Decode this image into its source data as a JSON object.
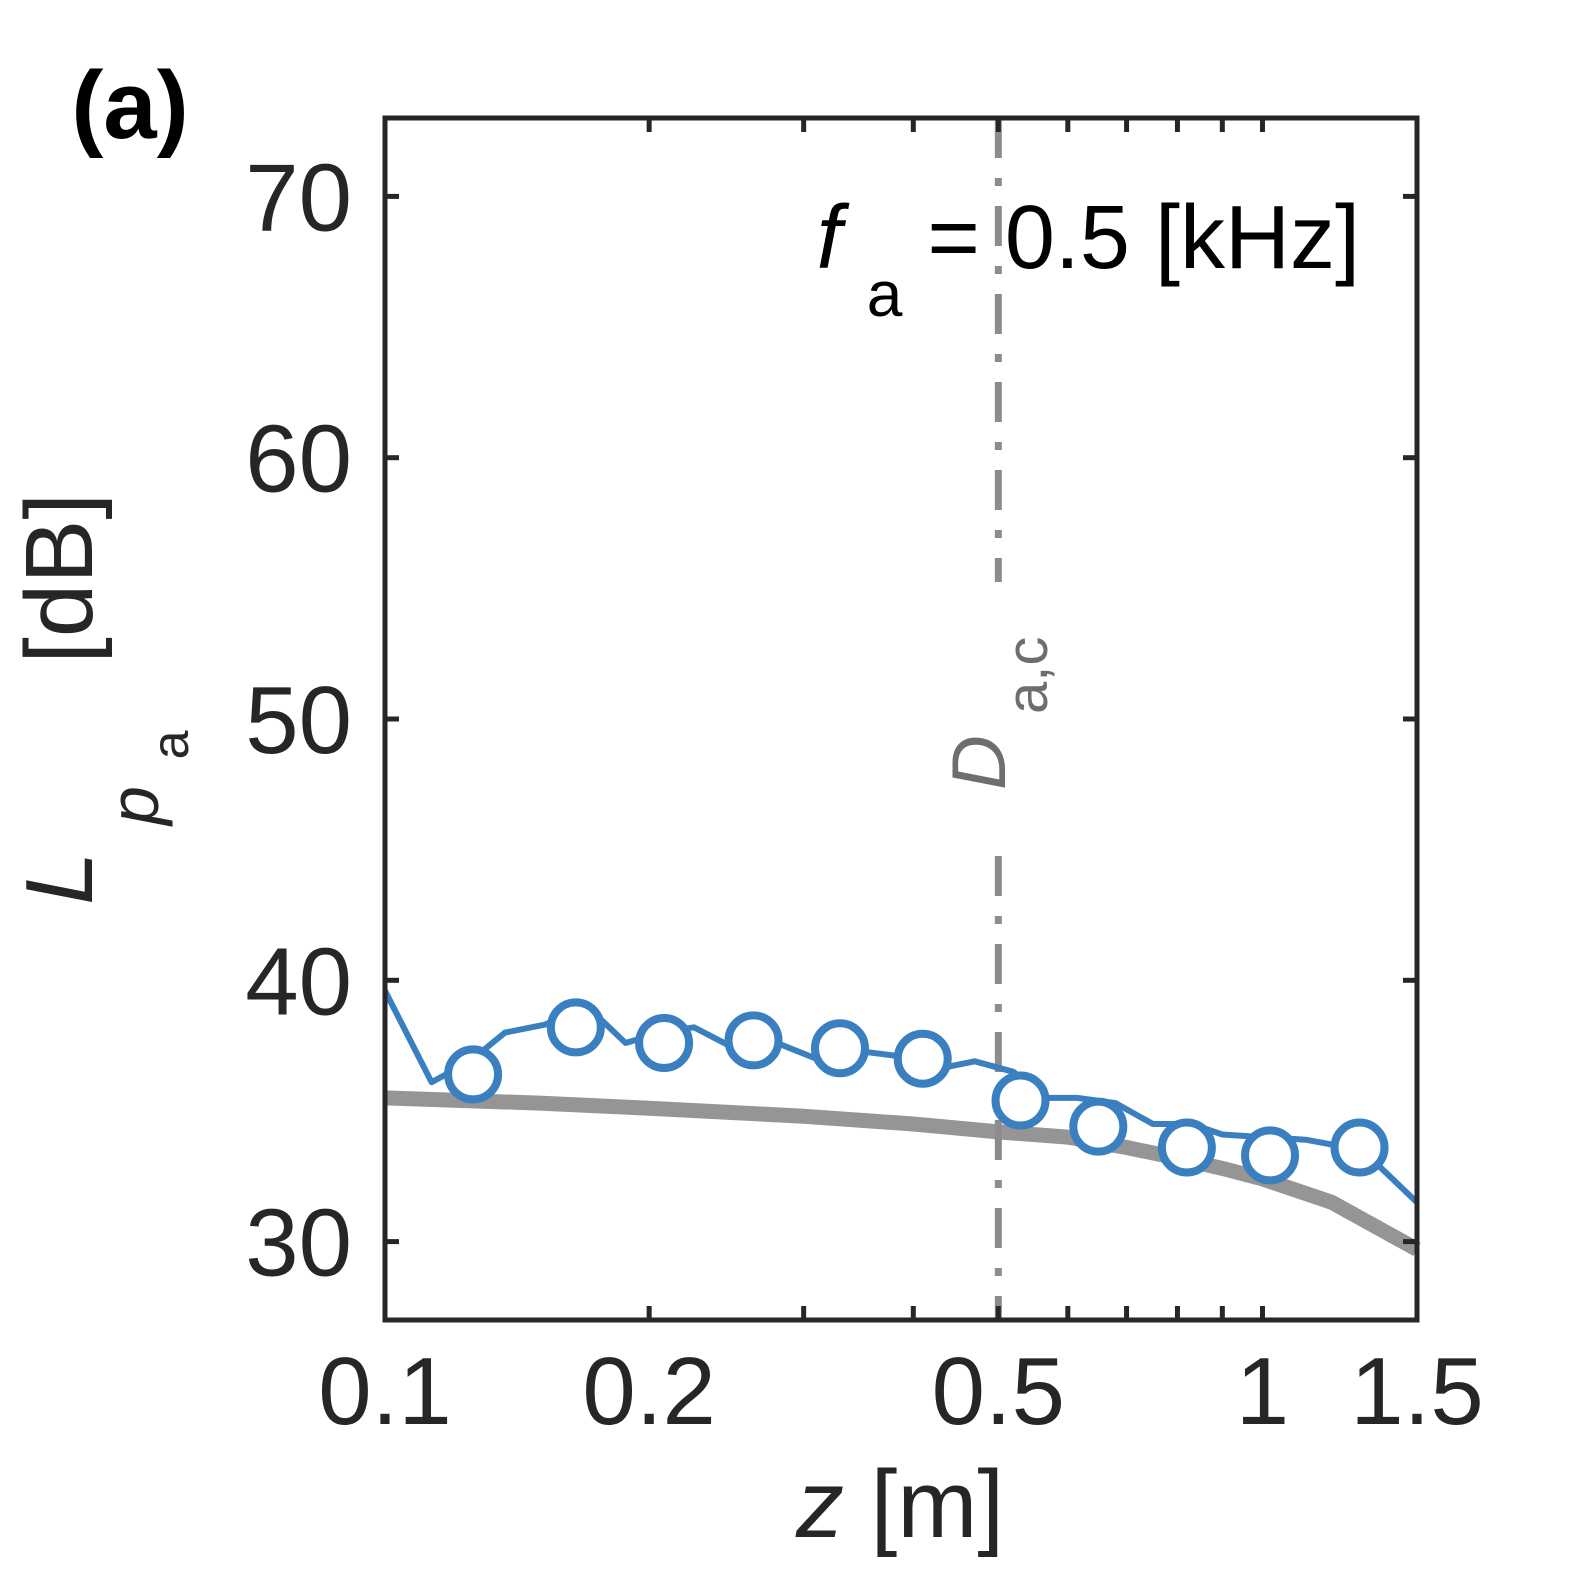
{
  "panel_label": "(a)",
  "annotation": {
    "symbol": "f",
    "subscript": "a",
    "rest": " = 0.5 [kHz]"
  },
  "vline_label": {
    "symbol": "D",
    "subscript": "a,c"
  },
  "colors": {
    "series": "#3a7fbf",
    "model": "#959595",
    "vline": "#8c8c8c",
    "axis": "#262626"
  },
  "chart_data": {
    "type": "line",
    "xscale": "log",
    "xlim": [
      0.1,
      1.5
    ],
    "ylim": [
      27,
      73
    ],
    "xticks": [
      0.1,
      0.2,
      0.5,
      1,
      1.5
    ],
    "xtick_labels": [
      "0.1",
      "0.2",
      "0.5",
      "1",
      "1.5"
    ],
    "xminor_ticks": [
      0.3,
      0.4,
      0.6,
      0.7,
      0.8,
      0.9
    ],
    "yticks": [
      30,
      40,
      50,
      60,
      70
    ],
    "ytick_labels": [
      "30",
      "40",
      "50",
      "60",
      "70"
    ],
    "xlabel": {
      "symbol": "z",
      "rest": " [m]"
    },
    "ylabel": {
      "symbol": "L",
      "sub": "p",
      "subsub": "a",
      "rest": "[dB]"
    },
    "vline_x": 0.5,
    "series": [
      {
        "name": "measured",
        "style": "line",
        "x": [
          0.1,
          0.113,
          0.125,
          0.137,
          0.152,
          0.17,
          0.188,
          0.206,
          0.225,
          0.25,
          0.275,
          0.31,
          0.345,
          0.385,
          0.425,
          0.47,
          0.52,
          0.57,
          0.615,
          0.68,
          0.75,
          0.83,
          0.9,
          1.0,
          1.12,
          1.3,
          1.5
        ],
        "values": [
          39.6,
          36.1,
          36.9,
          38.0,
          38.3,
          39.0,
          37.6,
          38.0,
          38.2,
          37.4,
          37.7,
          37.0,
          37.3,
          37.1,
          36.6,
          36.9,
          36.5,
          35.5,
          35.5,
          35.3,
          34.5,
          34.5,
          34.1,
          34.0,
          33.9,
          33.5,
          31.5
        ]
      },
      {
        "name": "measured-markers",
        "style": "markers",
        "x": [
          0.126,
          0.165,
          0.208,
          0.263,
          0.33,
          0.41,
          0.53,
          0.65,
          0.82,
          1.02,
          1.29
        ],
        "values": [
          36.4,
          38.2,
          37.6,
          37.7,
          37.4,
          37.0,
          35.4,
          34.4,
          33.6,
          33.3,
          33.6
        ]
      },
      {
        "name": "model",
        "style": "thick-line",
        "x": [
          0.1,
          0.15,
          0.2,
          0.3,
          0.4,
          0.5,
          0.6,
          0.7,
          0.8,
          0.9,
          1.0,
          1.2,
          1.5
        ],
        "values": [
          35.5,
          35.3,
          35.1,
          34.8,
          34.5,
          34.2,
          34.0,
          33.6,
          33.2,
          32.8,
          32.4,
          31.5,
          29.7
        ]
      }
    ]
  }
}
